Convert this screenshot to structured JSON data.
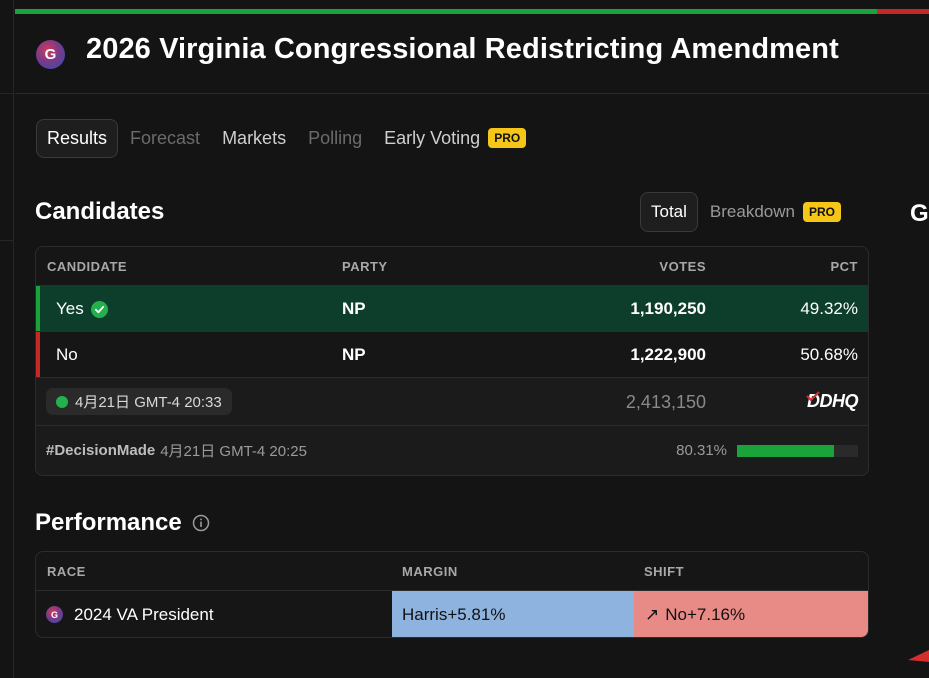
{
  "colors": {
    "accent_green": "#1aa33a",
    "accent_red": "#c62828",
    "winner_row_bg": "#0d3d2b",
    "margin_bg": "#8fb3df",
    "shift_bg": "#e88b87",
    "pro_badge": "#f5c518"
  },
  "header": {
    "logo_letter": "G",
    "title": "2026 Virginia Congressional Redistricting Amendment"
  },
  "tabs": [
    {
      "label": "Results",
      "state": "active"
    },
    {
      "label": "Forecast",
      "state": "disabled"
    },
    {
      "label": "Markets",
      "state": "normal"
    },
    {
      "label": "Polling",
      "state": "disabled"
    },
    {
      "label": "Early Voting",
      "state": "normal",
      "badge": "PRO"
    }
  ],
  "candidates_section": {
    "title": "Candidates",
    "view_toggle": {
      "total_label": "Total",
      "breakdown_label": "Breakdown",
      "breakdown_badge": "PRO"
    },
    "edge_letter": "G",
    "columns": {
      "candidate": "CANDIDATE",
      "party": "PARTY",
      "votes": "VOTES",
      "pct": "PCT"
    },
    "rows": [
      {
        "name": "Yes",
        "party": "NP",
        "votes": "1,190,250",
        "pct": "49.32%",
        "winner": true,
        "bar_color": "#1aa33a"
      },
      {
        "name": "No",
        "party": "NP",
        "votes": "1,222,900",
        "pct": "50.68%",
        "winner": false,
        "bar_color": "#c62828"
      }
    ],
    "summary": {
      "updated_time": "4月21日 GMT-4 20:33",
      "total_votes": "2,413,150",
      "source_logo": "DDHQ"
    },
    "footer": {
      "decision_tag": "#DecisionMade",
      "decision_time": "4月21日 GMT-4 20:25",
      "reporting_pct": "80.31%",
      "reporting_fraction": 0.8031
    }
  },
  "performance_section": {
    "title": "Performance",
    "info_icon": "info-icon",
    "columns": {
      "race": "RACE",
      "margin": "MARGIN",
      "shift": "SHIFT"
    },
    "rows": [
      {
        "race_logo_letter": "G",
        "race": "2024 VA President",
        "margin": "Harris+5.81%",
        "shift_arrow": "↗",
        "shift": "No+7.16%"
      }
    ]
  }
}
